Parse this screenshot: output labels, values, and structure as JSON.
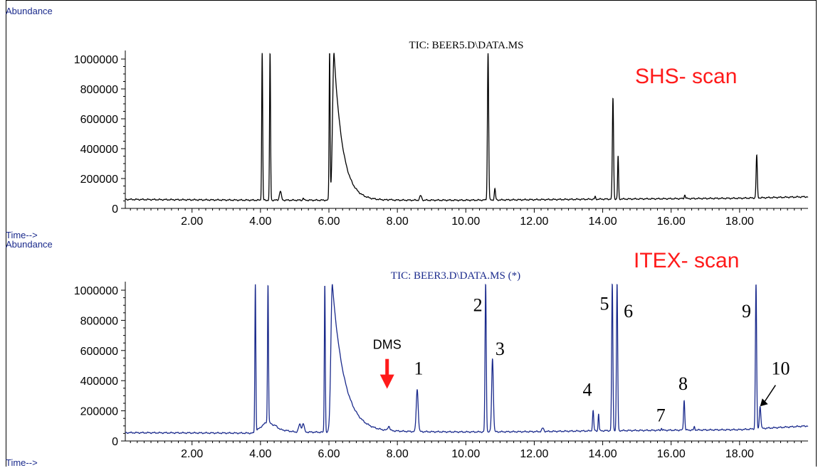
{
  "panels": [
    {
      "abundance_label": "Abundance",
      "time_label": "Time-->",
      "title": "TIC: BEER5.D\\DATA.MS",
      "scan_label": "SHS- scan",
      "color": "#000000",
      "title_color": "#111111",
      "annotations": []
    },
    {
      "abundance_label": "Abundance",
      "time_label": "Time-->",
      "title": "TIC: BEER3.D\\DATA.MS (*)",
      "scan_label": "ITEX- scan",
      "color": "#1a2a8c",
      "title_color": "#1a2a8c",
      "annotations": [
        {
          "text": "DMS",
          "x": 7.7,
          "y": 610000,
          "kind": "arrow-label"
        },
        {
          "text": "1",
          "x": 8.62,
          "y": 440000
        },
        {
          "text": "2",
          "x": 10.35,
          "y": 860000
        },
        {
          "text": "3",
          "x": 11.0,
          "y": 570000
        },
        {
          "text": "4",
          "x": 13.55,
          "y": 300000
        },
        {
          "text": "5",
          "x": 14.05,
          "y": 870000
        },
        {
          "text": "6",
          "x": 14.75,
          "y": 820000
        },
        {
          "text": "7",
          "x": 15.7,
          "y": 130000
        },
        {
          "text": "8",
          "x": 16.35,
          "y": 340000
        },
        {
          "text": "9",
          "x": 18.2,
          "y": 820000
        },
        {
          "text": "10",
          "x": 19.2,
          "y": 440000
        }
      ],
      "pointer_arrow": {
        "from_x": 19.05,
        "from_y": 370000,
        "to_x": 18.6,
        "to_y": 230000
      }
    }
  ],
  "chart_data": [
    {
      "type": "line",
      "title": "TIC: BEER5.D\\DATA.MS",
      "xlabel": "Time-->",
      "ylabel": "Abundance",
      "annotations": [
        "SHS- scan"
      ],
      "xlim": [
        0.05,
        20.0
      ],
      "ylim": [
        0,
        1040000
      ],
      "x_ticks": [
        2.0,
        4.0,
        6.0,
        8.0,
        10.0,
        12.0,
        14.0,
        16.0,
        18.0
      ],
      "x_tick_labels": [
        "2.00",
        "4.00",
        "6.00",
        "8.00",
        "10.00",
        "12.00",
        "14.00",
        "16.00",
        "18.00"
      ],
      "y_ticks": [
        0,
        200000,
        400000,
        600000,
        800000,
        1000000
      ],
      "y_tick_labels": [
        "0",
        "200000",
        "400000",
        "600000",
        "800000",
        "1000000"
      ],
      "grid": false,
      "series": [
        {
          "baseline": [
            [
              0.05,
              60000
            ],
            [
              4.0,
              55000
            ],
            [
              6.0,
              55000
            ],
            [
              10.0,
              55000
            ],
            [
              14.0,
              62000
            ],
            [
              18.0,
              68000
            ],
            [
              20.0,
              78000
            ]
          ],
          "peaks": [
            {
              "x": 4.05,
              "y": 1040000,
              "w": 0.02
            },
            {
              "x": 4.28,
              "y": 1040000,
              "w": 0.02
            },
            {
              "x": 4.58,
              "y": 115000,
              "w": 0.04
            },
            {
              "x": 5.25,
              "y": 70000,
              "w": 0.02
            },
            {
              "x": 6.02,
              "y": 1040000,
              "w": 0.02
            },
            {
              "x": 6.15,
              "y": 1040000,
              "w": 0.06,
              "tail": 0.25
            },
            {
              "x": 7.78,
              "y": 60000,
              "w": 0.03
            },
            {
              "x": 8.68,
              "y": 85000,
              "w": 0.04
            },
            {
              "x": 10.65,
              "y": 1040000,
              "w": 0.025
            },
            {
              "x": 10.85,
              "y": 130000,
              "w": 0.025
            },
            {
              "x": 13.78,
              "y": 78000,
              "w": 0.02
            },
            {
              "x": 14.3,
              "y": 740000,
              "w": 0.025
            },
            {
              "x": 14.45,
              "y": 350000,
              "w": 0.02
            },
            {
              "x": 16.4,
              "y": 90000,
              "w": 0.025
            },
            {
              "x": 18.5,
              "y": 355000,
              "w": 0.025
            }
          ]
        }
      ]
    },
    {
      "type": "line",
      "title": "TIC: BEER3.D\\DATA.MS (*)",
      "xlabel": "Time-->",
      "ylabel": "Abundance",
      "annotations": [
        "ITEX- scan",
        "DMS",
        "1",
        "2",
        "3",
        "4",
        "5",
        "6",
        "7",
        "8",
        "9",
        "10"
      ],
      "xlim": [
        0.05,
        20.0
      ],
      "ylim": [
        0,
        1040000
      ],
      "x_ticks": [
        2.0,
        4.0,
        6.0,
        8.0,
        10.0,
        12.0,
        14.0,
        16.0,
        18.0
      ],
      "x_tick_labels": [
        "2.00",
        "4.00",
        "6.00",
        "8.00",
        "10.00",
        "12.00",
        "14.00",
        "16.00",
        "18.00"
      ],
      "y_ticks": [
        0,
        200000,
        400000,
        600000,
        800000,
        1000000
      ],
      "y_tick_labels": [
        "0",
        "200000",
        "400000",
        "600000",
        "800000",
        "1000000"
      ],
      "grid": false,
      "series": [
        {
          "baseline": [
            [
              0.05,
              55000
            ],
            [
              3.8,
              52000
            ],
            [
              4.2,
              130000
            ],
            [
              4.6,
              75000
            ],
            [
              5.0,
              60000
            ],
            [
              5.8,
              58000
            ],
            [
              6.0,
              55000
            ],
            [
              8.0,
              62000
            ],
            [
              10.0,
              60000
            ],
            [
              12.0,
              62000
            ],
            [
              14.0,
              68000
            ],
            [
              18.0,
              75000
            ],
            [
              20.0,
              100000
            ]
          ],
          "peaks": [
            {
              "x": 3.85,
              "y": 1040000,
              "w": 0.02
            },
            {
              "x": 4.22,
              "y": 1040000,
              "w": 0.02
            },
            {
              "x": 4.45,
              "y": 100000,
              "w": 0.06
            },
            {
              "x": 5.15,
              "y": 110000,
              "w": 0.05
            },
            {
              "x": 5.25,
              "y": 115000,
              "w": 0.04
            },
            {
              "x": 5.88,
              "y": 1040000,
              "w": 0.02
            },
            {
              "x": 6.1,
              "y": 1040000,
              "w": 0.06,
              "tail": 0.35
            },
            {
              "x": 7.75,
              "y": 90000,
              "w": 0.04
            },
            {
              "x": 8.58,
              "y": 340000,
              "w": 0.04
            },
            {
              "x": 10.58,
              "y": 1040000,
              "w": 0.025
            },
            {
              "x": 10.78,
              "y": 545000,
              "w": 0.035
            },
            {
              "x": 12.25,
              "y": 85000,
              "w": 0.04
            },
            {
              "x": 13.72,
              "y": 200000,
              "w": 0.025
            },
            {
              "x": 13.88,
              "y": 180000,
              "w": 0.02
            },
            {
              "x": 14.28,
              "y": 1040000,
              "w": 0.025
            },
            {
              "x": 14.42,
              "y": 1040000,
              "w": 0.025
            },
            {
              "x": 15.72,
              "y": 85000,
              "w": 0.02
            },
            {
              "x": 16.38,
              "y": 270000,
              "w": 0.025
            },
            {
              "x": 16.68,
              "y": 95000,
              "w": 0.02
            },
            {
              "x": 18.48,
              "y": 1040000,
              "w": 0.025
            },
            {
              "x": 18.6,
              "y": 230000,
              "w": 0.03
            }
          ]
        }
      ]
    }
  ]
}
